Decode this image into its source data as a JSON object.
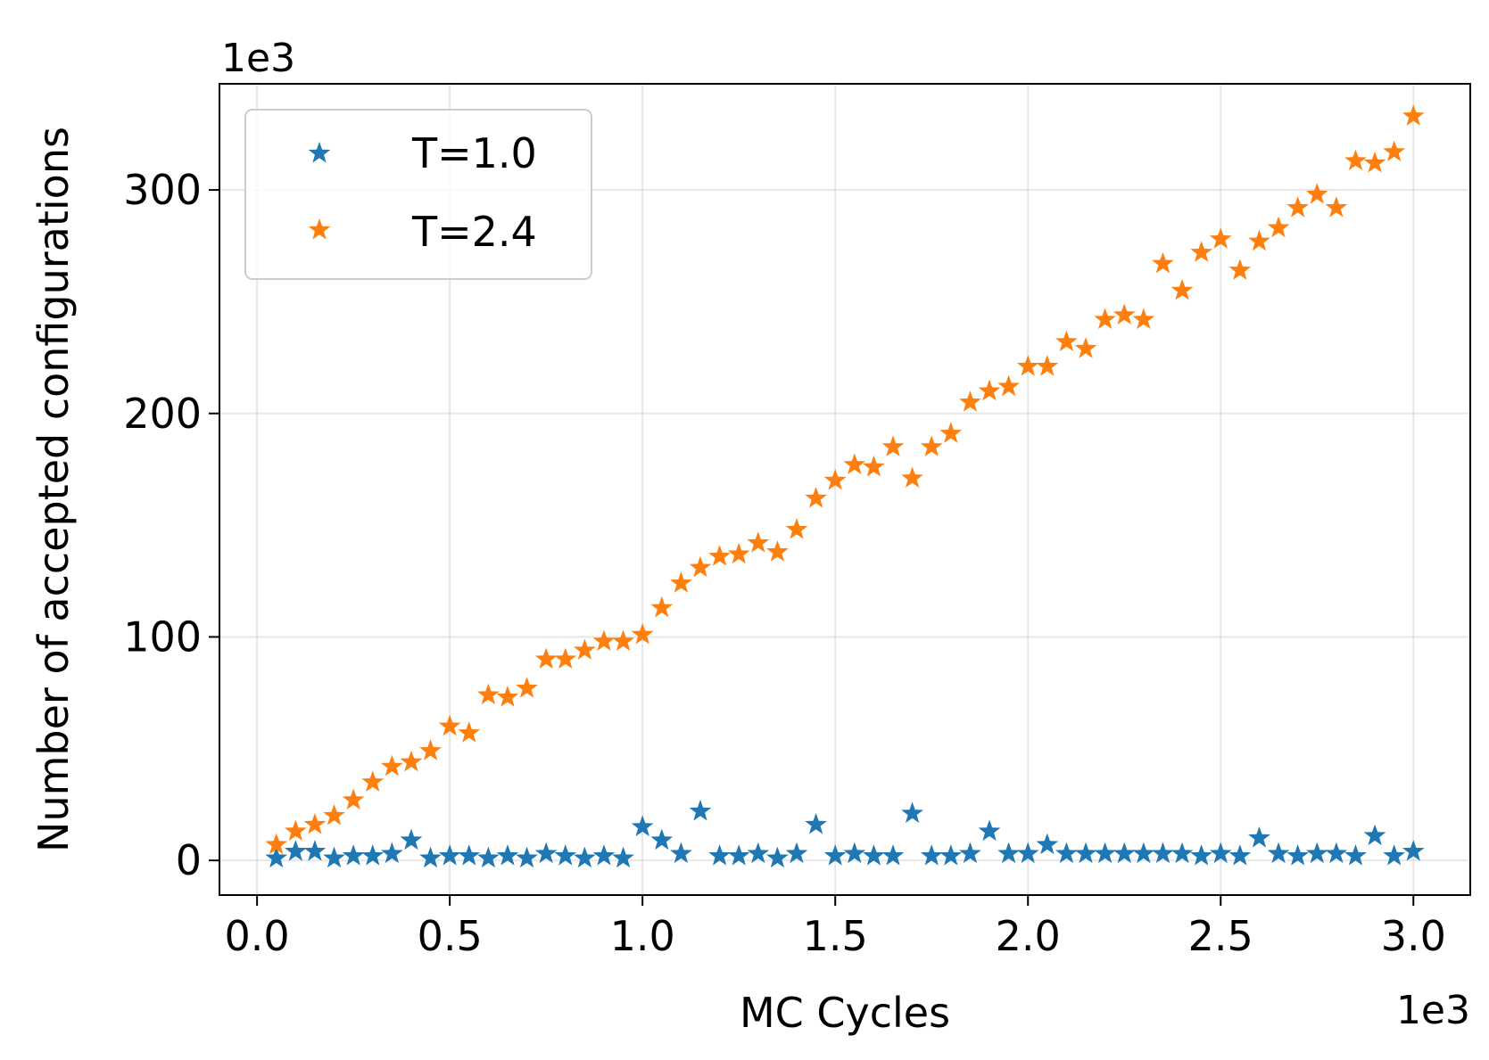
{
  "chart_data": {
    "type": "scatter",
    "xlabel": "MC Cycles",
    "ylabel": "Number of accepted configurations",
    "x_offset_text": "1e3",
    "y_offset_text": "1e3",
    "xlim": [
      -0.0975,
      3.1475
    ],
    "ylim": [
      -15.5,
      347.5
    ],
    "x_ticks": [
      0.0,
      0.5,
      1.0,
      1.5,
      2.0,
      2.5,
      3.0
    ],
    "x_tick_labels": [
      "0.0",
      "0.5",
      "1.0",
      "1.5",
      "2.0",
      "2.5",
      "3.0"
    ],
    "y_ticks": [
      0,
      100,
      200,
      300
    ],
    "y_tick_labels": [
      "0",
      "100",
      "200",
      "300"
    ],
    "grid": true,
    "legend_position": "top-left",
    "marker": "star",
    "x": [
      0.05,
      0.1,
      0.15,
      0.2,
      0.25,
      0.3,
      0.35,
      0.4,
      0.45,
      0.5,
      0.55,
      0.6,
      0.65,
      0.7,
      0.75,
      0.8,
      0.85,
      0.9,
      0.95,
      1.0,
      1.05,
      1.1,
      1.15,
      1.2,
      1.25,
      1.3,
      1.35,
      1.4,
      1.45,
      1.5,
      1.55,
      1.6,
      1.65,
      1.7,
      1.75,
      1.8,
      1.85,
      1.9,
      1.95,
      2.0,
      2.05,
      2.1,
      2.15,
      2.2,
      2.25,
      2.3,
      2.35,
      2.4,
      2.45,
      2.5,
      2.55,
      2.6,
      2.65,
      2.7,
      2.75,
      2.8,
      2.85,
      2.9,
      2.95,
      3.0
    ],
    "series": [
      {
        "name": "T=1.0",
        "color": "#1f77b4",
        "values": [
          1,
          4,
          4,
          1,
          2,
          2,
          3,
          9,
          1,
          2,
          2,
          1,
          2,
          1,
          3,
          2,
          1,
          2,
          1,
          15,
          9,
          3,
          22,
          2,
          2,
          3,
          1,
          3,
          16,
          2,
          3,
          2,
          2,
          21,
          2,
          2,
          3,
          13,
          3,
          3,
          7,
          3,
          3,
          3,
          3,
          3,
          3,
          3,
          2,
          3,
          2,
          10,
          3,
          2,
          3,
          3,
          2,
          11,
          2,
          4
        ]
      },
      {
        "name": "T=2.4",
        "color": "#ff7f0e",
        "values": [
          7,
          13,
          16,
          20,
          27,
          35,
          42,
          44,
          49,
          60,
          57,
          74,
          73,
          77,
          90,
          90,
          94,
          98,
          98,
          101,
          113,
          124,
          131,
          136,
          137,
          142,
          138,
          148,
          162,
          170,
          177,
          176,
          185,
          171,
          185,
          191,
          205,
          210,
          212,
          221,
          221,
          232,
          229,
          242,
          244,
          242,
          267,
          255,
          272,
          278,
          264,
          277,
          283,
          292,
          298,
          292,
          313,
          312,
          317,
          333
        ]
      }
    ]
  }
}
